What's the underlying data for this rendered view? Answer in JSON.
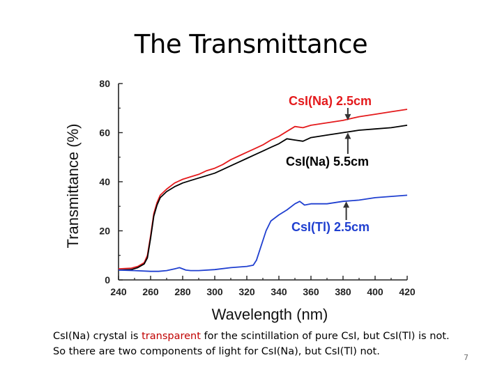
{
  "slide": {
    "title": "The Transmittance",
    "caption": {
      "line1_prefix": "CsI(Na) crystal is ",
      "line1_highlight": "transparent",
      "line1_suffix": " for the scintillation of pure CsI, but CsI(Tl) is not.",
      "line2": "So there are two components of light for CsI(Na), but CsI(Tl) not."
    },
    "slide_number": "7"
  },
  "colors": {
    "red": "#e41a1c",
    "black": "#000000",
    "blue": "#1f3fd0",
    "highlight": "#c00000"
  },
  "chart_data": {
    "type": "line",
    "title": "",
    "xlabel": "Wavelength (nm)",
    "ylabel": "Transmittance (%)",
    "xlim": [
      240,
      420
    ],
    "ylim": [
      0,
      80
    ],
    "xticks": [
      240,
      260,
      280,
      300,
      320,
      340,
      360,
      380,
      400,
      420
    ],
    "yticks": [
      0,
      20,
      40,
      60,
      80
    ],
    "grid": false,
    "series": [
      {
        "name": "CsI(Na) 2.5cm",
        "color": "#e41a1c",
        "x": [
          240,
          248,
          252,
          256,
          258,
          260,
          262,
          264,
          266,
          270,
          275,
          280,
          285,
          290,
          295,
          300,
          305,
          310,
          315,
          320,
          325,
          330,
          335,
          340,
          345,
          350,
          355,
          360,
          370,
          380,
          390,
          400,
          410,
          420
        ],
        "y": [
          4.5,
          4.8,
          5.5,
          7,
          10,
          18,
          27,
          31.5,
          34.5,
          37,
          39.5,
          41,
          42,
          43,
          44.5,
          45.5,
          47,
          49,
          50.5,
          52,
          53.5,
          55,
          57,
          58.5,
          60.5,
          62.5,
          62,
          63,
          64,
          65,
          66.5,
          67.5,
          68.5,
          69.5
        ]
      },
      {
        "name": "CsI(Na) 5.5cm",
        "color": "#000000",
        "x": [
          240,
          248,
          252,
          256,
          258,
          260,
          262,
          264,
          266,
          270,
          275,
          280,
          285,
          290,
          295,
          300,
          305,
          310,
          315,
          320,
          325,
          330,
          335,
          340,
          345,
          350,
          355,
          360,
          370,
          380,
          390,
          400,
          410,
          420
        ],
        "y": [
          4,
          4.2,
          5,
          6.5,
          9,
          17,
          26,
          30.5,
          33.5,
          36,
          38,
          39.5,
          40.5,
          41.5,
          42.5,
          43.5,
          45,
          46.5,
          48,
          49.5,
          51,
          52.5,
          54,
          55.5,
          57.5,
          57,
          56.5,
          58,
          59,
          60,
          61,
          61.5,
          62,
          63
        ]
      },
      {
        "name": "CsI(Tl) 2.5cm",
        "color": "#1f3fd0",
        "x": [
          240,
          250,
          260,
          265,
          270,
          275,
          278,
          282,
          285,
          290,
          300,
          310,
          320,
          324,
          326,
          328,
          330,
          332,
          335,
          340,
          345,
          350,
          353,
          356,
          360,
          370,
          380,
          390,
          400,
          410,
          420
        ],
        "y": [
          4,
          3.8,
          3.5,
          3.5,
          3.8,
          4.5,
          5,
          4,
          3.8,
          3.8,
          4.2,
          5,
          5.5,
          6,
          8,
          12,
          16,
          20,
          24,
          26.5,
          28.5,
          31,
          32,
          30.5,
          31,
          31,
          32,
          32.5,
          33.5,
          34,
          34.5
        ]
      }
    ],
    "annotations": [
      {
        "text": "CsI(Na) 2.5cm",
        "color": "#e41a1c",
        "arrow_to_x": 383,
        "arrow_to_y": 65
      },
      {
        "text": "CsI(Na) 5.5cm",
        "color": "#000000",
        "arrow_to_x": 383,
        "arrow_to_y": 60
      },
      {
        "text": "CsI(Tl) 2.5cm",
        "color": "#1f3fd0",
        "arrow_to_x": 382,
        "arrow_to_y": 32
      }
    ]
  }
}
